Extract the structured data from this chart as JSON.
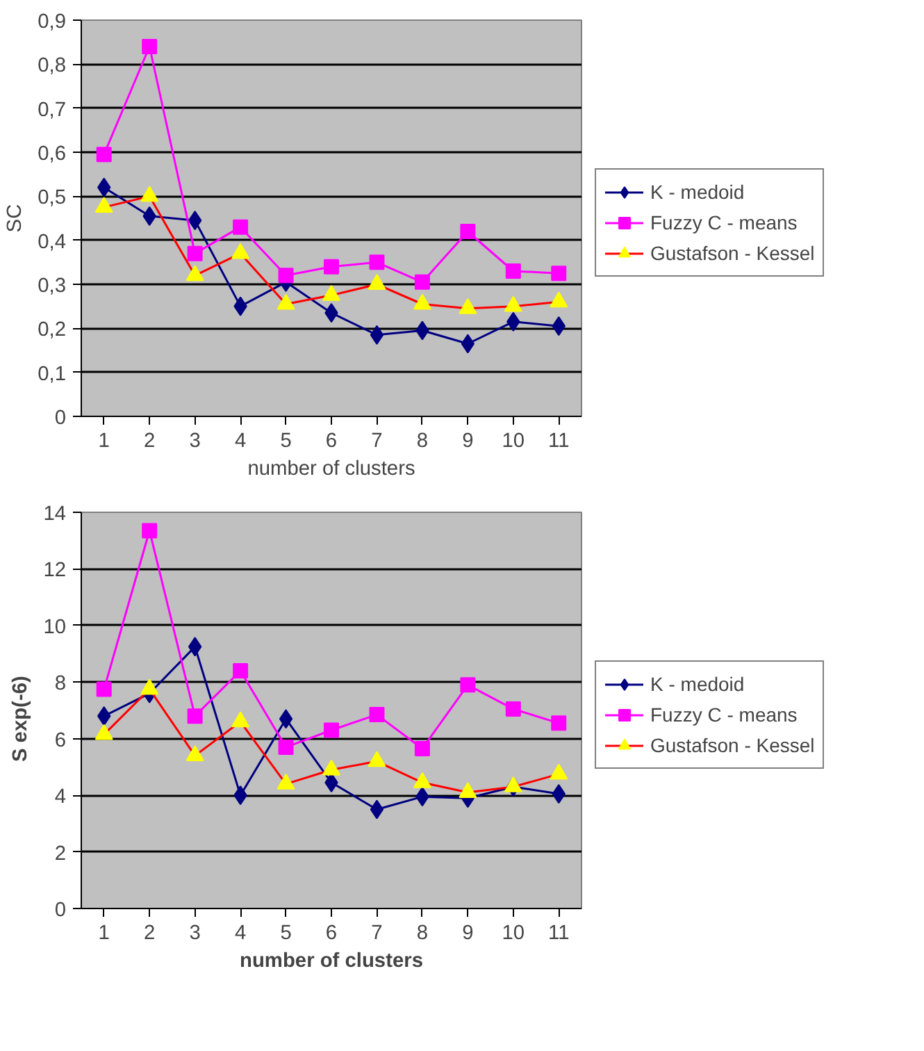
{
  "chart_data": [
    {
      "type": "line",
      "xlabel": "number of clusters",
      "ylabel": "SC",
      "categories": [
        "1",
        "2",
        "3",
        "4",
        "5",
        "6",
        "7",
        "8",
        "9",
        "10",
        "11"
      ],
      "ylim": [
        0,
        0.9
      ],
      "yticks": [
        0,
        {
          "value": 0.1,
          "label": "0,1"
        },
        {
          "value": 0.2,
          "label": "0,2"
        },
        {
          "value": 0.3,
          "label": "0,3"
        },
        {
          "value": 0.4,
          "label": "0,4"
        },
        {
          "value": 0.5,
          "label": "0,5"
        },
        {
          "value": 0.6,
          "label": "0,6"
        },
        {
          "value": 0.7,
          "label": "0,7"
        },
        {
          "value": 0.8,
          "label": "0,8"
        },
        {
          "value": 0.9,
          "label": "0,9"
        }
      ],
      "grid": "y",
      "legend": "right",
      "series": [
        {
          "name": "K - medoid",
          "color": "#000080",
          "marker": "diamond",
          "values": [
            0.52,
            0.455,
            0.445,
            0.25,
            0.305,
            0.235,
            0.185,
            0.195,
            0.165,
            0.215,
            0.205
          ]
        },
        {
          "name": "Fuzzy C - means",
          "color": "#ff00ff",
          "marker": "square",
          "values": [
            0.595,
            0.84,
            0.37,
            0.43,
            0.32,
            0.34,
            0.35,
            0.305,
            0.42,
            0.33,
            0.325
          ]
        },
        {
          "name": "Gustafson - Kessel",
          "color": "#ff0000",
          "marker": "triangle",
          "colors": [
            "#ffff00",
            "#ffff00",
            "#ffff00",
            "#ffff00",
            "#ffff00",
            "#ffff00",
            "#ffff00",
            "#ffff00",
            "#ffff00",
            "#ffff00",
            "#ffff00"
          ],
          "values": [
            0.475,
            0.5,
            0.32,
            0.37,
            0.255,
            0.275,
            0.3,
            0.255,
            0.245,
            0.25,
            0.26
          ]
        }
      ]
    },
    {
      "type": "line",
      "xlabel": "number of clusters",
      "ylabel": "S    exp(-6)",
      "categories": [
        "1",
        "2",
        "3",
        "4",
        "5",
        "6",
        "7",
        "8",
        "9",
        "10",
        "11"
      ],
      "ylim": [
        0,
        14
      ],
      "yticks": [
        0,
        2,
        4,
        6,
        8,
        10,
        12,
        14
      ],
      "grid": "y",
      "legend": "right",
      "series": [
        {
          "name": "K - medoid",
          "color": "#000080",
          "marker": "diamond",
          "values": [
            6.8,
            7.6,
            9.25,
            4.0,
            6.7,
            4.45,
            3.5,
            3.95,
            3.9,
            4.3,
            4.05
          ]
        },
        {
          "name": "Fuzzy C - means",
          "color": "#ff00ff",
          "marker": "square",
          "values": [
            7.75,
            13.35,
            6.8,
            8.4,
            5.7,
            6.3,
            6.85,
            5.65,
            7.9,
            7.05,
            6.55
          ]
        },
        {
          "name": "Gustafson - Kessel",
          "color": "#ff0000",
          "marker": "triangle",
          "colors": [
            "#ffff00",
            "#ffff00",
            "#ffff00",
            "#ffff00",
            "#ffff00",
            "#ffff00",
            "#ffff00",
            "#ffff00",
            "#ffff00",
            "#ffff00",
            "#ffff00"
          ],
          "values": [
            6.15,
            7.75,
            5.4,
            6.6,
            4.4,
            4.9,
            5.2,
            4.45,
            4.1,
            4.3,
            4.75
          ]
        }
      ]
    }
  ]
}
